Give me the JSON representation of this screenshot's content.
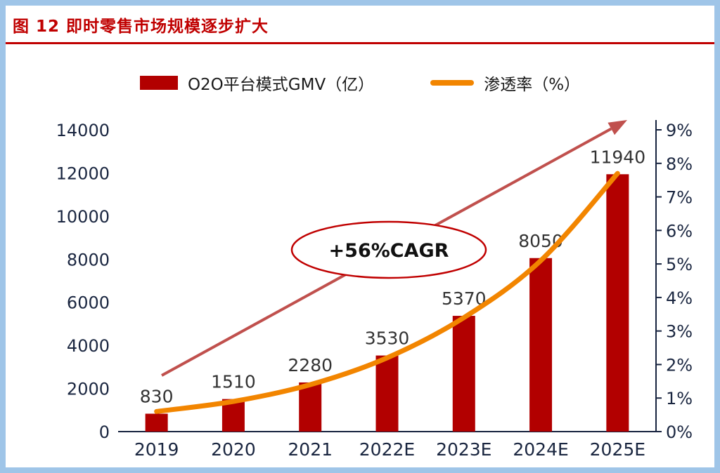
{
  "figure": {
    "title": "图 12 即时零售市场规模逐步扩大",
    "accent_color": "#c00000",
    "frame_color": "#9fc5e8"
  },
  "legend": [
    {
      "label": "O2O平台模式GMV（亿）",
      "type": "bar",
      "color": "#b20000"
    },
    {
      "label": "渗透率（%）",
      "type": "line",
      "color": "#f28500"
    }
  ],
  "chart_data": {
    "type": "bar",
    "combo": "bar+line",
    "categories": [
      "2019",
      "2020",
      "2021",
      "2022E",
      "2023E",
      "2024E",
      "2025E"
    ],
    "series": [
      {
        "name": "O2O平台模式GMV（亿）",
        "type": "bar",
        "axis": "left",
        "color": "#b20000",
        "values": [
          830,
          1510,
          2280,
          3530,
          5370,
          8050,
          11940
        ],
        "data_labels": [
          "830",
          "1510",
          "2280",
          "3530",
          "5370",
          "8050",
          "11940"
        ]
      },
      {
        "name": "渗透率（%）",
        "type": "line",
        "axis": "right",
        "color": "#f28500",
        "values": [
          0.6,
          0.9,
          1.4,
          2.2,
          3.4,
          5.1,
          7.7
        ]
      }
    ],
    "left_axis": {
      "min": 0,
      "max": 14000,
      "step": 2000,
      "tick_labels": [
        "0",
        "2000",
        "4000",
        "6000",
        "8000",
        "10000",
        "12000",
        "14000"
      ]
    },
    "right_axis": {
      "min": 0,
      "max": 9,
      "step": 1,
      "tick_labels": [
        "0%",
        "1%",
        "2%",
        "3%",
        "4%",
        "5%",
        "6%",
        "7%",
        "8%",
        "9%"
      ]
    },
    "grid": false,
    "legend_position": "top",
    "axis_text_color": "#1a2640",
    "axis_line_color": "#17233f",
    "annotation": {
      "text": "+56%CAGR",
      "shape": "ellipse",
      "text_color": "#111111",
      "ellipse_stroke": "#c00000",
      "arrow_color": "#c0504d"
    }
  }
}
